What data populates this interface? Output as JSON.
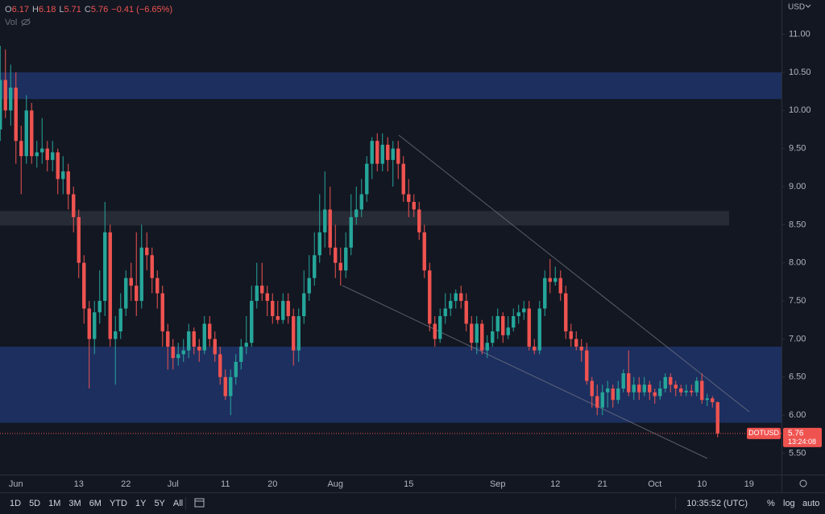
{
  "chart_data": {
    "type": "candlestick",
    "legend_labels": [
      "O",
      "H",
      "L",
      "C"
    ],
    "change": "−0.41 (−6.65%)",
    "volume_label": "Vol",
    "currency": "USD",
    "symbol": "DOTUSD",
    "countdown": "13:24:08",
    "timeframes": [
      "1D",
      "5D",
      "1M",
      "3M",
      "6M",
      "YTD",
      "1Y",
      "5Y",
      "All"
    ],
    "clock": "10:35:52 (UTC)",
    "scale_buttons": [
      "%",
      "log",
      "auto"
    ],
    "up_color": "#26a69a",
    "down_color": "#ef5350",
    "ylim": [
      5.22,
      11.45
    ],
    "yticks": [
      {
        "value": 5.5,
        "label": "5.50"
      },
      {
        "value": 6,
        "label": "6.00"
      },
      {
        "value": 6.5,
        "label": "6.50"
      },
      {
        "value": 7,
        "label": "7.00"
      },
      {
        "value": 7.5,
        "label": "7.50"
      },
      {
        "value": 8,
        "label": "8.00"
      },
      {
        "value": 8.5,
        "label": "8.50"
      },
      {
        "value": 9,
        "label": "9.00"
      },
      {
        "value": 9.5,
        "label": "9.50"
      },
      {
        "value": 10,
        "label": "10.00"
      },
      {
        "value": 10.5,
        "label": "10.50"
      },
      {
        "value": 11,
        "label": "11.00"
      }
    ],
    "zones": [
      {
        "low": 10.15,
        "high": 10.5,
        "color": "#1f3266"
      },
      {
        "low": 8.49,
        "high": 8.68,
        "color": "#2a2e39"
      },
      {
        "low": 5.9,
        "high": 6.9,
        "color": "#1f3266"
      }
    ],
    "categories": [
      null,
      null,
      null,
      "Jun",
      null,
      null,
      null,
      null,
      null,
      null,
      null,
      null,
      null,
      null,
      null,
      "13",
      null,
      null,
      null,
      null,
      null,
      null,
      null,
      null,
      "22",
      null,
      null,
      null,
      null,
      null,
      null,
      null,
      null,
      "Jul",
      null,
      null,
      null,
      null,
      null,
      null,
      null,
      null,
      null,
      "11",
      null,
      null,
      null,
      null,
      null,
      null,
      null,
      null,
      "20",
      null,
      null,
      null,
      null,
      null,
      null,
      null,
      null,
      null,
      null,
      null,
      "Aug",
      null,
      null,
      null,
      null,
      null,
      null,
      null,
      null,
      null,
      null,
      null,
      null,
      null,
      "15",
      null,
      null,
      null,
      null,
      null,
      null,
      null,
      null,
      null,
      null,
      null,
      null,
      null,
      null,
      null,
      null,
      "Sep",
      null,
      null,
      null,
      null,
      null,
      null,
      null,
      null,
      null,
      null,
      "12",
      null,
      null,
      null,
      null,
      null,
      null,
      null,
      null,
      "21",
      null,
      null,
      null,
      null,
      null,
      null,
      null,
      null,
      null,
      "Oct",
      null,
      null,
      null,
      null,
      null,
      null,
      null,
      null,
      "10",
      null,
      null,
      null,
      null,
      null,
      null,
      null,
      null,
      "19",
      null,
      null,
      null
    ],
    "ohlc": [
      [
        9.75,
        10.85,
        9.6,
        10.4
      ],
      [
        10.4,
        10.8,
        9.9,
        10.0
      ],
      [
        10.0,
        10.6,
        9.8,
        10.3
      ],
      [
        10.3,
        10.5,
        9.3,
        9.6
      ],
      [
        9.6,
        9.8,
        8.9,
        9.4
      ],
      [
        9.4,
        10.2,
        9.3,
        10.0
      ],
      [
        10.0,
        10.1,
        9.3,
        9.4
      ],
      [
        9.4,
        9.6,
        9.25,
        9.45
      ],
      [
        9.45,
        9.9,
        9.3,
        9.5
      ],
      [
        9.5,
        9.6,
        9.2,
        9.35
      ],
      [
        9.35,
        9.6,
        9.2,
        9.45
      ],
      [
        9.45,
        9.5,
        8.9,
        9.1
      ],
      [
        9.1,
        9.4,
        8.9,
        9.2
      ],
      [
        9.2,
        9.3,
        8.7,
        8.9
      ],
      [
        8.9,
        9.0,
        8.4,
        8.6
      ],
      [
        8.6,
        8.7,
        7.8,
        8.0
      ],
      [
        8.0,
        8.1,
        7.2,
        7.4
      ],
      [
        7.4,
        7.5,
        6.35,
        7.0
      ],
      [
        7.0,
        7.5,
        6.8,
        7.35
      ],
      [
        7.35,
        7.9,
        7.2,
        7.5
      ],
      [
        7.5,
        8.8,
        7.3,
        8.4
      ],
      [
        8.4,
        8.5,
        6.9,
        7.0
      ],
      [
        7.0,
        7.3,
        6.4,
        7.1
      ],
      [
        7.1,
        7.6,
        7.0,
        7.4
      ],
      [
        7.4,
        7.9,
        7.3,
        7.8
      ],
      [
        7.8,
        8.0,
        7.5,
        7.7
      ],
      [
        7.7,
        8.4,
        7.3,
        7.5
      ],
      [
        7.5,
        8.5,
        7.4,
        8.2
      ],
      [
        8.2,
        8.4,
        7.9,
        8.1
      ],
      [
        8.1,
        8.2,
        7.6,
        7.8
      ],
      [
        7.8,
        7.9,
        7.4,
        7.6
      ],
      [
        7.6,
        7.7,
        6.9,
        7.1
      ],
      [
        7.1,
        7.2,
        6.6,
        6.9
      ],
      [
        6.9,
        7.0,
        6.6,
        6.75
      ],
      [
        6.75,
        6.95,
        6.65,
        6.8
      ],
      [
        6.8,
        7.0,
        6.7,
        6.85
      ],
      [
        6.85,
        7.2,
        6.75,
        7.1
      ],
      [
        7.1,
        7.15,
        6.8,
        6.9
      ],
      [
        6.9,
        7.0,
        6.7,
        6.85
      ],
      [
        6.85,
        7.3,
        6.8,
        7.2
      ],
      [
        7.2,
        7.3,
        6.9,
        7.0
      ],
      [
        7.0,
        7.1,
        6.7,
        6.8
      ],
      [
        6.8,
        6.9,
        6.4,
        6.5
      ],
      [
        6.5,
        6.6,
        6.2,
        6.25
      ],
      [
        6.25,
        6.6,
        6.0,
        6.5
      ],
      [
        6.5,
        6.8,
        6.4,
        6.7
      ],
      [
        6.7,
        7.0,
        6.6,
        6.9
      ],
      [
        6.9,
        7.3,
        6.8,
        6.95
      ],
      [
        6.95,
        7.7,
        6.9,
        7.5
      ],
      [
        7.5,
        8.0,
        7.4,
        7.7
      ],
      [
        7.7,
        8.0,
        7.5,
        7.6
      ],
      [
        7.6,
        7.7,
        7.3,
        7.5
      ],
      [
        7.5,
        7.6,
        7.2,
        7.3
      ],
      [
        7.3,
        7.5,
        7.2,
        7.25
      ],
      [
        7.25,
        7.6,
        7.2,
        7.5
      ],
      [
        7.5,
        7.6,
        7.2,
        7.3
      ],
      [
        7.3,
        7.4,
        6.65,
        6.85
      ],
      [
        6.85,
        7.4,
        6.7,
        7.3
      ],
      [
        7.3,
        7.9,
        7.2,
        7.6
      ],
      [
        7.6,
        8.1,
        7.5,
        7.8
      ],
      [
        7.8,
        8.4,
        7.7,
        8.1
      ],
      [
        8.1,
        8.9,
        8.0,
        8.4
      ],
      [
        8.4,
        9.2,
        8.2,
        8.7
      ],
      [
        8.7,
        9.0,
        8.1,
        8.2
      ],
      [
        8.2,
        8.5,
        7.8,
        8.0
      ],
      [
        8.0,
        8.2,
        7.7,
        7.9
      ],
      [
        7.9,
        8.4,
        7.8,
        8.2
      ],
      [
        8.2,
        8.9,
        8.1,
        8.6
      ],
      [
        8.6,
        9.0,
        8.5,
        8.7
      ],
      [
        8.7,
        9.1,
        8.6,
        8.9
      ],
      [
        8.9,
        9.4,
        8.8,
        9.3
      ],
      [
        9.3,
        9.65,
        9.1,
        9.6
      ],
      [
        9.6,
        9.7,
        9.2,
        9.3
      ],
      [
        9.3,
        9.7,
        9.2,
        9.55
      ],
      [
        9.55,
        9.65,
        9.2,
        9.35
      ],
      [
        9.35,
        9.6,
        9.0,
        9.5
      ],
      [
        9.5,
        9.6,
        9.1,
        9.3
      ],
      [
        9.3,
        9.4,
        8.8,
        8.9
      ],
      [
        8.9,
        9.1,
        8.6,
        8.8
      ],
      [
        8.8,
        8.9,
        8.6,
        8.7
      ],
      [
        8.7,
        8.8,
        8.3,
        8.4
      ],
      [
        8.4,
        8.5,
        7.8,
        7.9
      ],
      [
        7.9,
        8.0,
        7.1,
        7.2
      ],
      [
        7.2,
        7.3,
        6.9,
        7.0
      ],
      [
        7.0,
        7.4,
        6.95,
        7.3
      ],
      [
        7.3,
        7.6,
        7.2,
        7.4
      ],
      [
        7.4,
        7.6,
        7.3,
        7.5
      ],
      [
        7.5,
        7.65,
        7.4,
        7.6
      ],
      [
        7.6,
        7.7,
        7.4,
        7.5
      ],
      [
        7.5,
        7.6,
        7.1,
        7.2
      ],
      [
        7.2,
        7.3,
        6.85,
        6.95
      ],
      [
        6.95,
        7.3,
        6.8,
        7.2
      ],
      [
        7.2,
        7.25,
        6.8,
        6.85
      ],
      [
        6.85,
        7.05,
        6.75,
        6.95
      ],
      [
        6.95,
        7.3,
        6.9,
        7.1
      ],
      [
        7.1,
        7.4,
        7.0,
        7.3
      ],
      [
        7.3,
        7.35,
        6.95,
        7.05
      ],
      [
        7.05,
        7.3,
        7.0,
        7.15
      ],
      [
        7.15,
        7.4,
        7.1,
        7.3
      ],
      [
        7.3,
        7.45,
        7.2,
        7.35
      ],
      [
        7.35,
        7.5,
        7.25,
        7.4
      ],
      [
        7.4,
        7.5,
        6.85,
        6.9
      ],
      [
        6.9,
        7.0,
        6.8,
        6.85
      ],
      [
        6.85,
        7.5,
        6.8,
        7.4
      ],
      [
        7.4,
        7.9,
        7.3,
        7.8
      ],
      [
        7.8,
        8.05,
        7.6,
        7.75
      ],
      [
        7.75,
        7.95,
        7.7,
        7.8
      ],
      [
        7.8,
        7.9,
        7.5,
        7.6
      ],
      [
        7.6,
        7.7,
        7.0,
        7.1
      ],
      [
        7.1,
        7.2,
        6.9,
        7.0
      ],
      [
        7.0,
        7.1,
        6.85,
        6.9
      ],
      [
        6.9,
        7.0,
        6.7,
        6.85
      ],
      [
        6.85,
        6.95,
        6.4,
        6.45
      ],
      [
        6.45,
        6.5,
        6.1,
        6.25
      ],
      [
        6.25,
        6.4,
        6.0,
        6.1
      ],
      [
        6.1,
        6.4,
        6.0,
        6.3
      ],
      [
        6.3,
        6.45,
        6.1,
        6.35
      ],
      [
        6.35,
        6.4,
        6.1,
        6.2
      ],
      [
        6.2,
        6.45,
        6.15,
        6.35
      ],
      [
        6.35,
        6.6,
        6.3,
        6.55
      ],
      [
        6.55,
        6.85,
        6.25,
        6.3
      ],
      [
        6.3,
        6.5,
        6.2,
        6.4
      ],
      [
        6.4,
        6.5,
        6.2,
        6.3
      ],
      [
        6.3,
        6.5,
        6.25,
        6.4
      ],
      [
        6.4,
        6.45,
        6.2,
        6.3
      ],
      [
        6.3,
        6.35,
        6.15,
        6.25
      ],
      [
        6.25,
        6.45,
        6.2,
        6.35
      ],
      [
        6.35,
        6.55,
        6.3,
        6.5
      ],
      [
        6.5,
        6.55,
        6.3,
        6.4
      ],
      [
        6.4,
        6.45,
        6.25,
        6.35
      ],
      [
        6.35,
        6.4,
        6.25,
        6.3
      ],
      [
        6.3,
        6.4,
        6.25,
        6.32
      ],
      [
        6.32,
        6.4,
        6.25,
        6.3
      ],
      [
        6.3,
        6.5,
        6.25,
        6.45
      ],
      [
        6.45,
        6.55,
        6.15,
        6.2
      ],
      [
        6.2,
        6.28,
        6.12,
        6.22
      ],
      [
        6.22,
        6.25,
        6.1,
        6.17
      ],
      [
        6.17,
        6.18,
        5.71,
        5.76
      ],
      null,
      null,
      null,
      null,
      null,
      null,
      null,
      null,
      null
    ]
  }
}
